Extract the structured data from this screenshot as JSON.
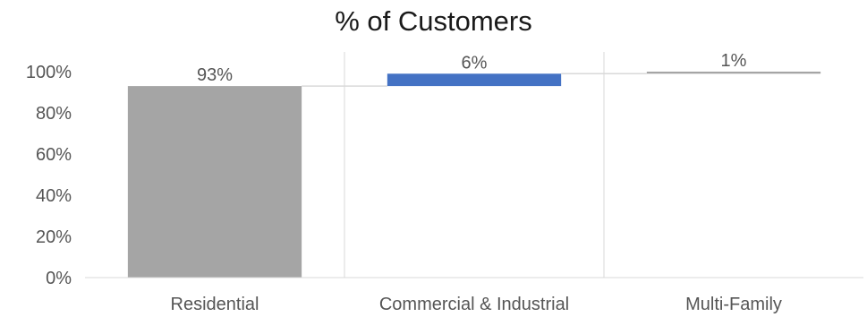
{
  "chart_data": {
    "type": "bar",
    "subtype": "waterfall",
    "title": "% of Customers",
    "categories": [
      "Residential",
      "Commercial & Industrial",
      "Multi-Family"
    ],
    "values": [
      93,
      6,
      1
    ],
    "data_labels": [
      "93%",
      "6%",
      "1%"
    ],
    "ylim": [
      0,
      100
    ],
    "yticks": [
      "0%",
      "20%",
      "40%",
      "60%",
      "80%",
      "100%"
    ],
    "xlabel": "",
    "ylabel": "",
    "grid": "vertical category separators",
    "legend": "none",
    "colors": [
      "#a5a5a5",
      "#4472c4",
      "#a5a5a5"
    ],
    "connector_color": "#d9d9d9"
  }
}
